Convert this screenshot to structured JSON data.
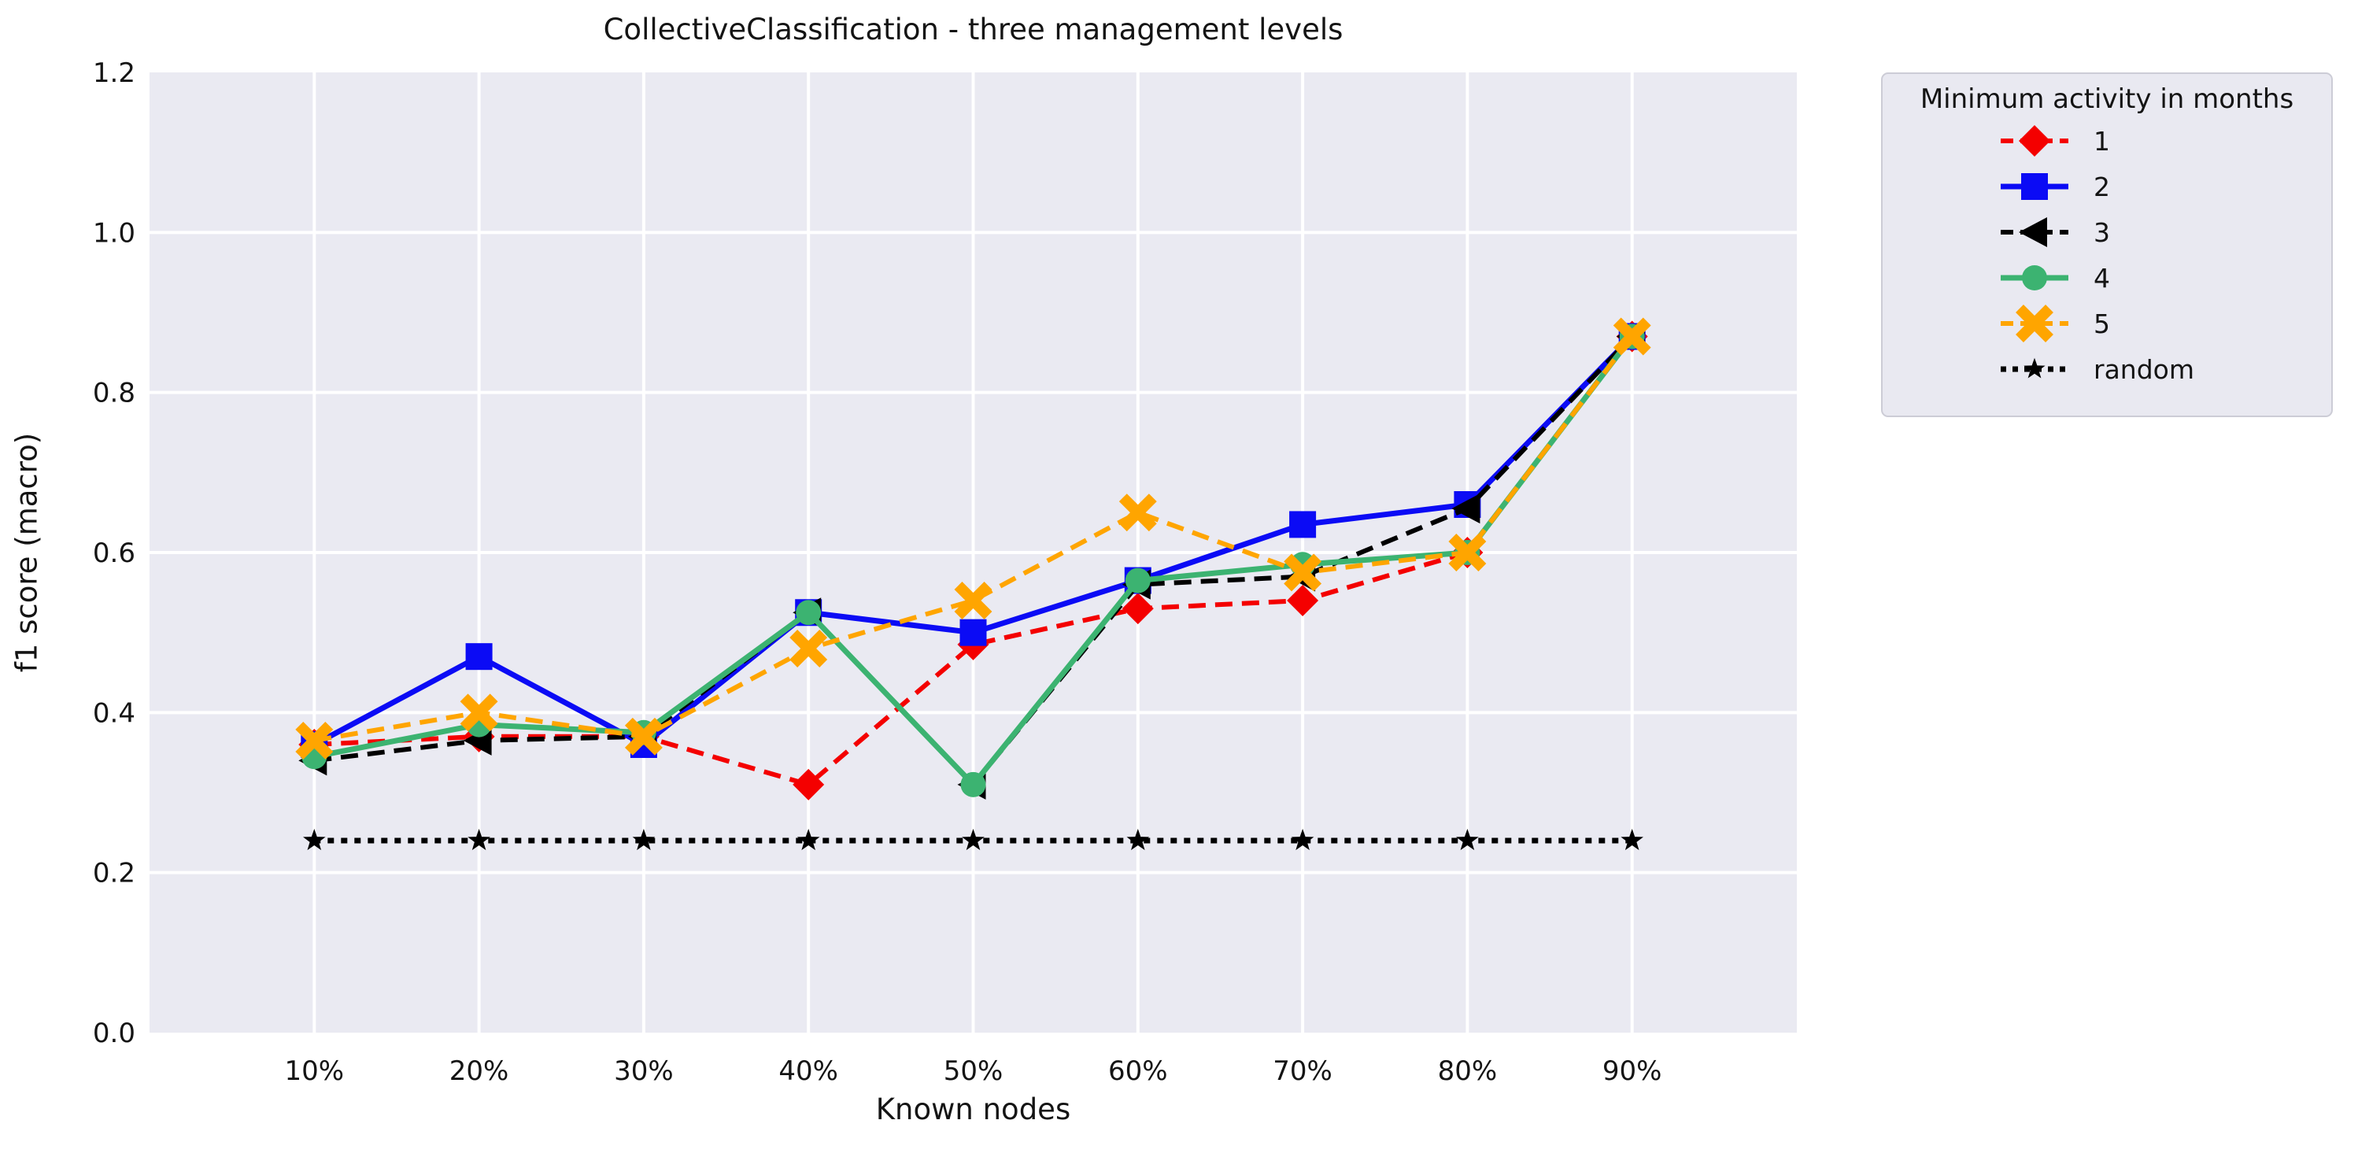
{
  "chart_data": {
    "type": "line",
    "title": "CollectiveClassification - three management levels",
    "xlabel": "Known nodes",
    "ylabel": "f1 score (macro)",
    "categories": [
      "10%",
      "20%",
      "30%",
      "40%",
      "50%",
      "60%",
      "70%",
      "80%",
      "90%"
    ],
    "yticks": [
      "0.0",
      "0.2",
      "0.4",
      "0.6",
      "0.8",
      "1.0",
      "1.2"
    ],
    "ylim": [
      0,
      1.2
    ],
    "grid": true,
    "plot_background": "#eaeaf2",
    "grid_color": "#ffffff",
    "legend_position": "outside upper right",
    "series": [
      {
        "name": "1",
        "color": "#f40000",
        "linestyle": "dashed",
        "marker": "diamond",
        "values": [
          0.36,
          0.37,
          0.37,
          0.31,
          0.485,
          0.53,
          0.54,
          0.6,
          0.87
        ]
      },
      {
        "name": "2",
        "color": "#0b0bf5",
        "linestyle": "solid",
        "marker": "square",
        "values": [
          0.36,
          0.47,
          0.36,
          0.525,
          0.5,
          0.565,
          0.635,
          0.66,
          0.87
        ]
      },
      {
        "name": "3",
        "color": "#000000",
        "linestyle": "dashed",
        "marker": "triangle-left",
        "values": [
          0.34,
          0.365,
          0.37,
          0.525,
          0.31,
          0.56,
          0.57,
          0.655,
          0.87
        ]
      },
      {
        "name": "4",
        "color": "#3cb371",
        "linestyle": "solid",
        "marker": "circle",
        "values": [
          0.345,
          0.385,
          0.375,
          0.525,
          0.31,
          0.565,
          0.585,
          0.6,
          0.87
        ]
      },
      {
        "name": "5",
        "color": "#ffa500",
        "linestyle": "dashed",
        "marker": "x-filled",
        "values": [
          0.365,
          0.4,
          0.37,
          0.48,
          0.54,
          0.65,
          0.575,
          0.6,
          0.87
        ]
      },
      {
        "name": "random",
        "color": "#000000",
        "linestyle": "dotted",
        "marker": "star",
        "values": [
          0.24,
          0.24,
          0.24,
          0.24,
          0.24,
          0.24,
          0.24,
          0.24,
          0.24
        ]
      }
    ]
  },
  "legend": {
    "title": "Minimum activity in months"
  }
}
